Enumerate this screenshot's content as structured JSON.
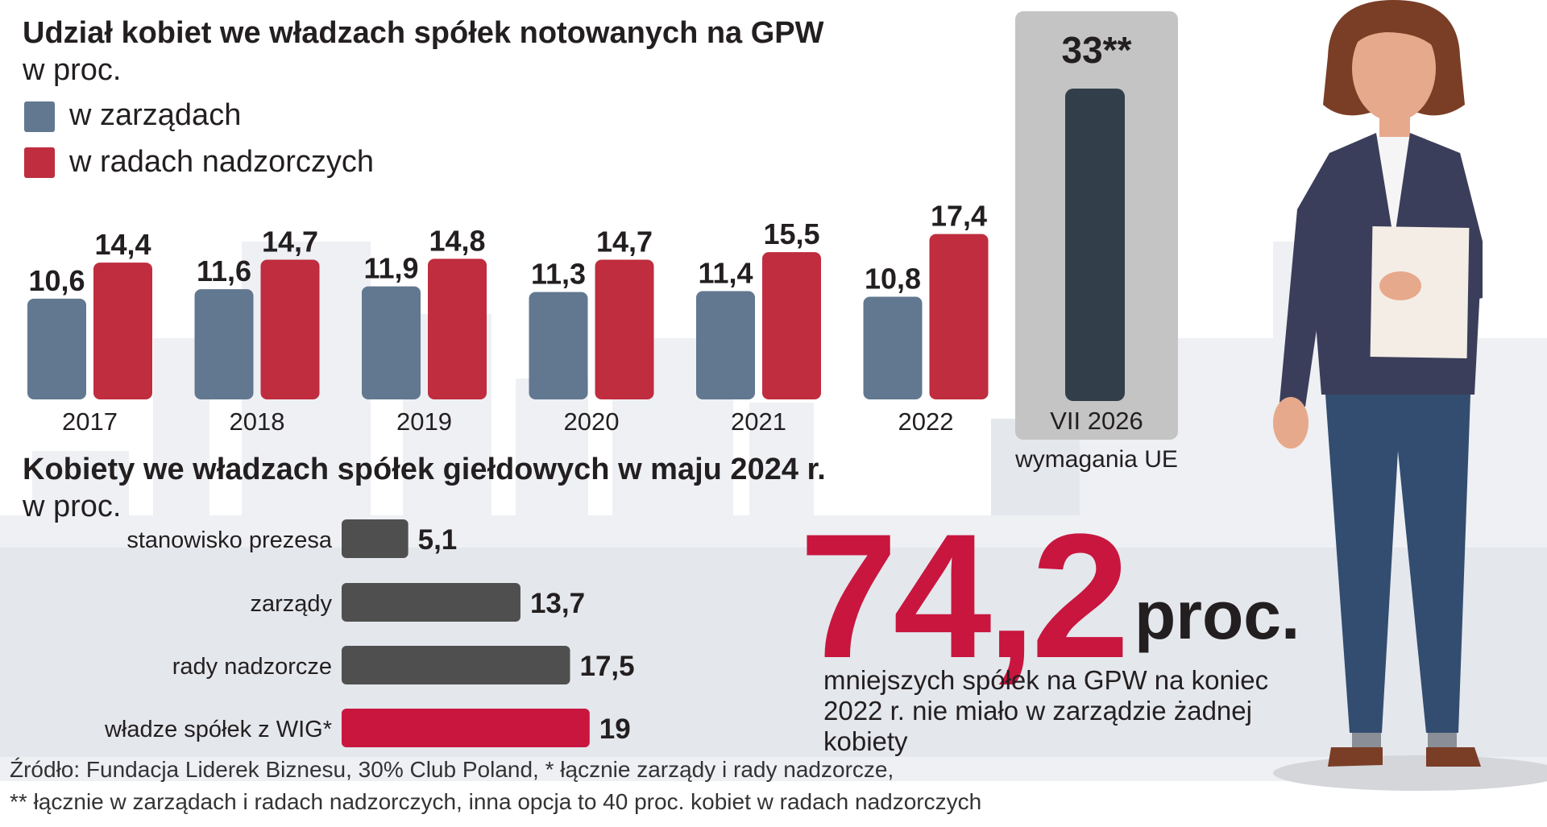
{
  "colors": {
    "zarzady": "#627890",
    "rady": "#bf2d3e",
    "target_bar": "#323f4b",
    "target_box": "#c4c4c4",
    "hbar": "#4f4f4f",
    "hbar_accent": "#c8163f"
  },
  "top": {
    "title": "Udział kobiet we władzach spółek notowanych na GPW",
    "subtitle": "w proc.",
    "legend": [
      "w zarządach",
      "w radach nadzorczych"
    ]
  },
  "target": {
    "value_label": "33**",
    "category": "VII 2026",
    "note": "wymagania UE"
  },
  "bottom": {
    "title": "Kobiety we władzach spółek giełdowych w maju 2024 r.",
    "subtitle": "w proc."
  },
  "highlight": {
    "number": "74,2",
    "unit": "proc.",
    "caption": "mniejszych spółek na GPW na koniec 2022 r. nie miało w zarządzie żadnej kobiety"
  },
  "source": {
    "line1": "Źródło: Fundacja Liderek Biznesu, 30% Club Poland, * łącznie zarządy i rady nadzorcze,",
    "line2": "** łącznie w zarządach i radach nadzorczych, inna opcja to 40 proc. kobiet w radach nadzorczych"
  },
  "chart_data": [
    {
      "type": "bar",
      "title": "Udział kobiet we władzach spółek notowanych na GPW",
      "subtitle": "w proc.",
      "categories": [
        "2017",
        "2018",
        "2019",
        "2020",
        "2021",
        "2022",
        "VII 2026"
      ],
      "series": [
        {
          "name": "w zarządach",
          "values": [
            10.6,
            11.6,
            11.9,
            11.3,
            11.4,
            10.8,
            null
          ],
          "labels": [
            "10,6",
            "11,6",
            "11,9",
            "11,3",
            "11,4",
            "10,8",
            null
          ]
        },
        {
          "name": "w radach nadzorczych",
          "values": [
            14.4,
            14.7,
            14.8,
            14.7,
            15.5,
            17.4,
            null
          ],
          "labels": [
            "14,4",
            "14,7",
            "14,8",
            "14,7",
            "15,5",
            "17,4",
            null
          ]
        },
        {
          "values": [
            null,
            null,
            null,
            null,
            null,
            null,
            33
          ],
          "labels": [
            null,
            null,
            null,
            null,
            null,
            null,
            "33**"
          ]
        }
      ],
      "legend": "top-left",
      "grid": false
    },
    {
      "type": "bar",
      "orientation": "horizontal",
      "title": "Kobiety we władzach spółek giełdowych w maju 2024 r.",
      "subtitle": "w proc.",
      "categories": [
        "stanowisko prezesa",
        "zarządy",
        "rady nadzorcze",
        "władze spółek z WIG*"
      ],
      "values": [
        5.1,
        13.7,
        17.5,
        19
      ],
      "labels": [
        "5,1",
        "13,7",
        "17,5",
        "19"
      ],
      "grid": false
    }
  ]
}
